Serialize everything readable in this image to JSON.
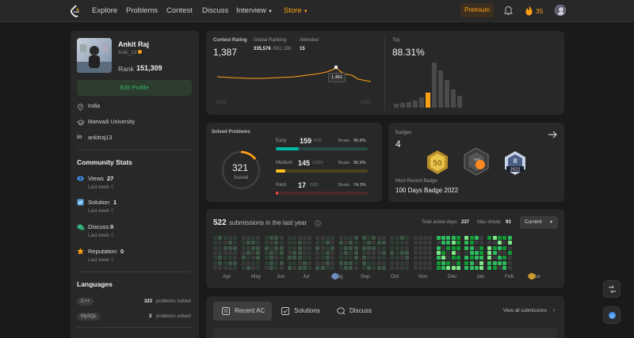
{
  "nav": {
    "links": [
      "Explore",
      "Problems",
      "Contest",
      "Discuss",
      "Interview",
      "Store"
    ],
    "premium": "Premium",
    "streak": "35"
  },
  "profile": {
    "name": "Ankit Raj",
    "username": "Anki_13",
    "rank_label": "Rank",
    "rank": "151,309",
    "edit": "Edit Profile",
    "location": "India",
    "school": "Marwadi University",
    "linkedin": "ankitraj13"
  },
  "community": {
    "title": "Community Stats",
    "items": [
      {
        "label": "Views",
        "value": "27",
        "sub": "Last week",
        "sub_val": "0",
        "color": "#3b8ee8"
      },
      {
        "label": "Solution",
        "value": "1",
        "sub": "Last week",
        "sub_val": "0",
        "color": "#5da9e6"
      },
      {
        "label": "Discuss",
        "value": "0",
        "sub": "Last week",
        "sub_val": "0",
        "color": "#33b37e"
      },
      {
        "label": "Reputation",
        "value": "0",
        "sub": "Last week",
        "sub_val": "0",
        "color": "#ffa116"
      }
    ]
  },
  "languages": {
    "title": "Languages",
    "items": [
      {
        "name": "C++",
        "count": "323",
        "suffix": "problems solved"
      },
      {
        "name": "MySQL",
        "count": "3",
        "suffix": "problems solved"
      }
    ]
  },
  "contest": {
    "rating_label": "Contest Rating",
    "rating": "1,387",
    "global_label": "Global Ranking",
    "global": "335,576",
    "global_total": "/581,186",
    "attended_label": "Attended",
    "attended": "15",
    "tooltip": "1,481",
    "year_start": "2022",
    "year_end": "2023",
    "top_label": "Top",
    "top": "88.31%"
  },
  "solved": {
    "title": "Solved Problems",
    "total": "321",
    "total_label": "Solved",
    "rows": [
      {
        "label": "Easy",
        "count": "159",
        "total": "/639",
        "beats_label": "Beats",
        "beats": "96.8%",
        "fraction": 0.249,
        "color": "#00b8a3"
      },
      {
        "label": "Medium",
        "count": "145",
        "total": "/1390",
        "beats_label": "Beats",
        "beats": "90.9%",
        "fraction": 0.104,
        "color": "#ffc01e"
      },
      {
        "label": "Hard",
        "count": "17",
        "total": "/583",
        "beats_label": "Beats",
        "beats": "74.3%",
        "fraction": 0.029,
        "color": "#ef4743"
      }
    ]
  },
  "badges": {
    "title": "Badges",
    "count": "4",
    "recent_label": "Most Recent Badge",
    "recent": "100 Days Badge 2022",
    "badge_texts": [
      "50",
      "8",
      "2022"
    ]
  },
  "submissions": {
    "count": "522",
    "label": "submissions in the last year",
    "active_label": "Total active days:",
    "active": "237",
    "streak_label": "Max streak:",
    "streak": "93",
    "selector": "Current",
    "months": [
      "Apr",
      "May",
      "Jun",
      "Jul",
      "Aug",
      "Sep",
      "Oct",
      "Nov",
      "Dec",
      "Jan",
      "Feb",
      "Mar"
    ]
  },
  "recent": {
    "tabs": [
      "Recent AC",
      "Solutions",
      "Discuss"
    ],
    "view_all": "View all submissions"
  }
}
